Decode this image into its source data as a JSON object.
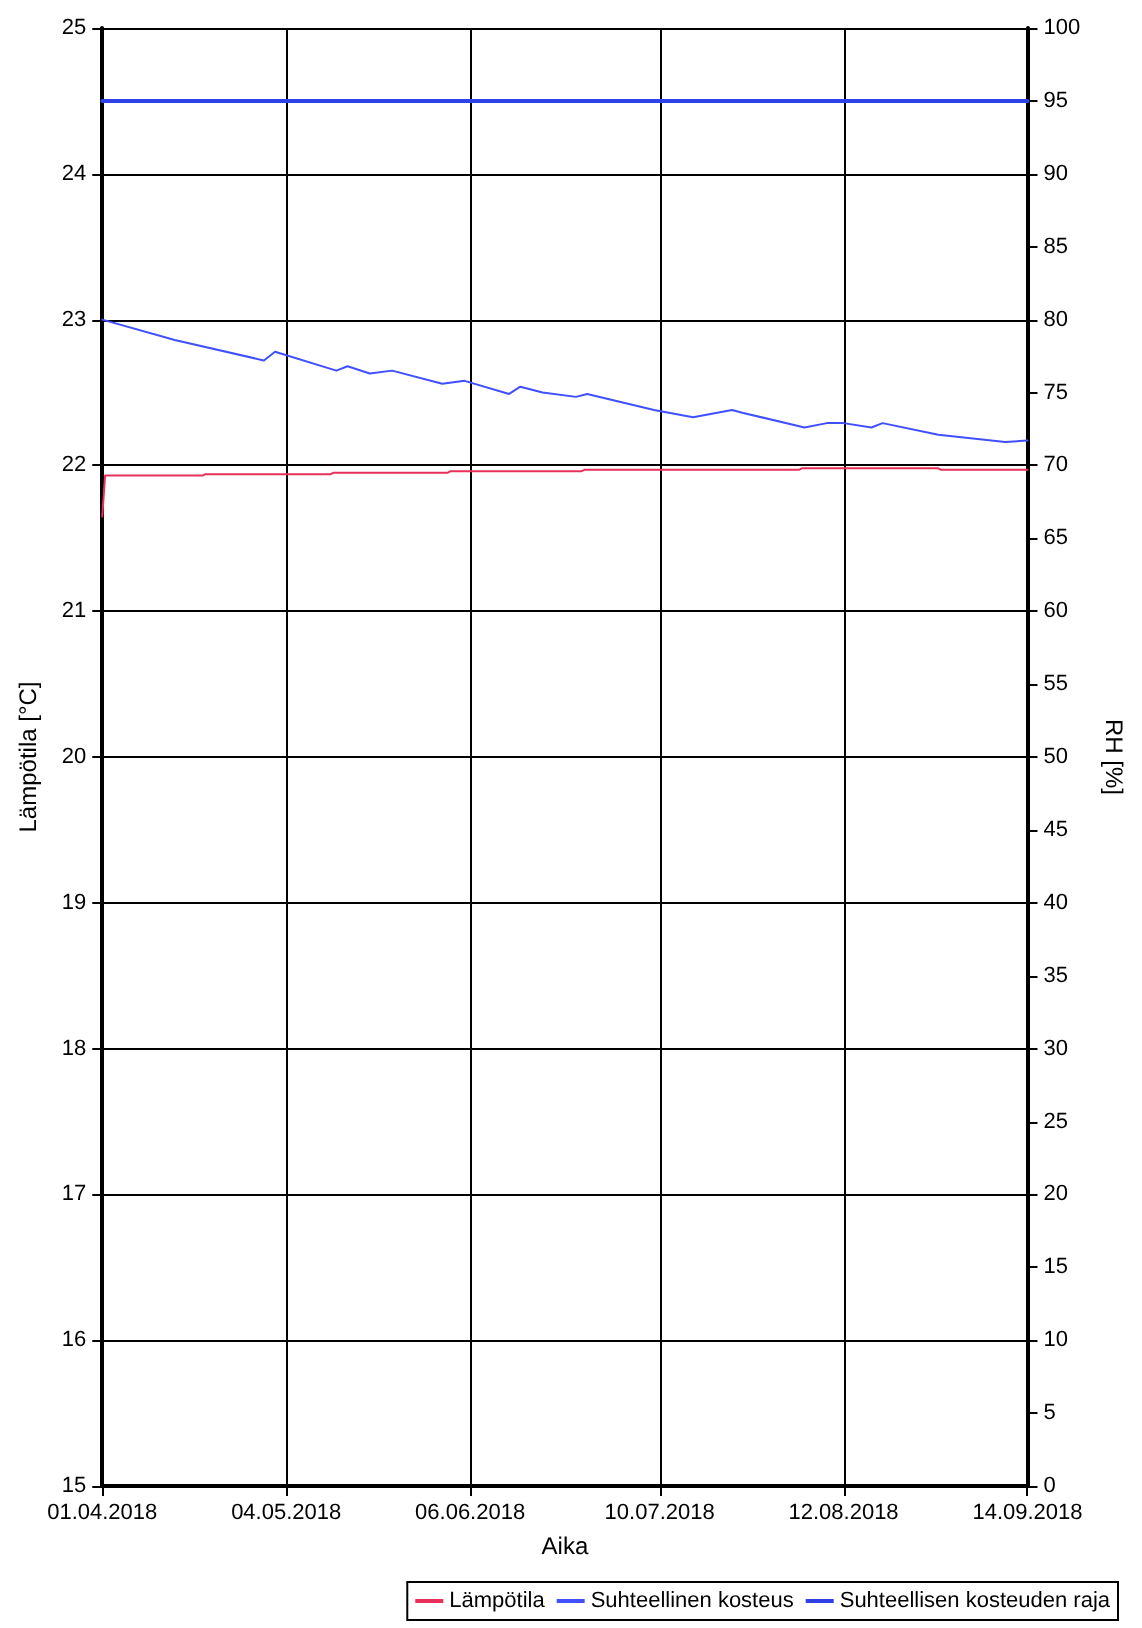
{
  "chart_data": {
    "type": "line",
    "xlabel": "Aika",
    "ylabel": "Lämpötila [°C]",
    "y2label": "RH [%]",
    "xlim": [
      "2018-04-01",
      "2018-09-14"
    ],
    "xticks": [
      {
        "value": "2018-04-01",
        "label": "01.04.2018"
      },
      {
        "value": "2018-05-04",
        "label": "04.05.2018"
      },
      {
        "value": "2018-06-06",
        "label": "06.06.2018"
      },
      {
        "value": "2018-07-10",
        "label": "10.07.2018"
      },
      {
        "value": "2018-08-12",
        "label": "12.08.2018"
      },
      {
        "value": "2018-09-14",
        "label": "14.09.2018"
      }
    ],
    "ylim": [
      15,
      25
    ],
    "yticks": [
      15,
      16,
      17,
      18,
      19,
      20,
      21,
      22,
      23,
      24,
      25
    ],
    "y2lim": [
      0,
      100
    ],
    "y2ticks": [
      0,
      5,
      10,
      15,
      20,
      25,
      30,
      35,
      40,
      45,
      50,
      55,
      60,
      65,
      70,
      75,
      80,
      85,
      90,
      95,
      100
    ],
    "grid": true,
    "legend": "bottom right",
    "marker": "none",
    "line_style": "solid",
    "series": [
      {
        "name": "Lämpötila",
        "color": "#e8305a",
        "x": [
          "2018-04-01",
          "2018-04-01T12:00",
          "2018-04-19",
          "2018-04-19T12:00",
          "2018-05-12",
          "2018-05-12T12:00",
          "2018-06-02",
          "2018-06-02T12:00",
          "2018-06-26",
          "2018-06-26T12:00",
          "2018-08-04",
          "2018-08-04T12:00",
          "2018-08-29",
          "2018-08-29T12:00",
          "2018-09-14"
        ],
        "values": [
          21.65,
          21.93,
          21.93,
          21.94,
          21.94,
          21.95,
          21.95,
          21.96,
          21.96,
          21.97,
          21.97,
          21.98,
          21.98,
          21.97,
          21.97
        ]
      },
      {
        "name": "Suhteellinen kosteus",
        "color": "#4050ff",
        "axis": "y2",
        "x": [
          "2018-04-01",
          "2018-04-14",
          "2018-04-30",
          "2018-05-02",
          "2018-05-13",
          "2018-05-15",
          "2018-05-19",
          "2018-05-23",
          "2018-06-01",
          "2018-06-05",
          "2018-06-13",
          "2018-06-15",
          "2018-06-19",
          "2018-06-25",
          "2018-06-27",
          "2018-07-09",
          "2018-07-16",
          "2018-07-23",
          "2018-07-25",
          "2018-08-05",
          "2018-08-09",
          "2018-08-12",
          "2018-08-17",
          "2018-08-19",
          "2018-08-29",
          "2018-09-10",
          "2018-09-14"
        ],
        "values": [
          80.0,
          78.6,
          77.2,
          77.8,
          76.5,
          76.8,
          76.3,
          76.5,
          75.6,
          75.8,
          74.9,
          75.4,
          75.0,
          74.7,
          74.9,
          73.8,
          73.3,
          73.8,
          73.6,
          72.6,
          72.9,
          72.9,
          72.6,
          72.9,
          72.1,
          71.6,
          71.7
        ]
      },
      {
        "name": "Suhteellisen kosteuden raja",
        "color": "#3040e8",
        "axis": "y2",
        "x": [
          "2018-04-01",
          "2018-09-14"
        ],
        "values": [
          95,
          95
        ]
      }
    ]
  }
}
